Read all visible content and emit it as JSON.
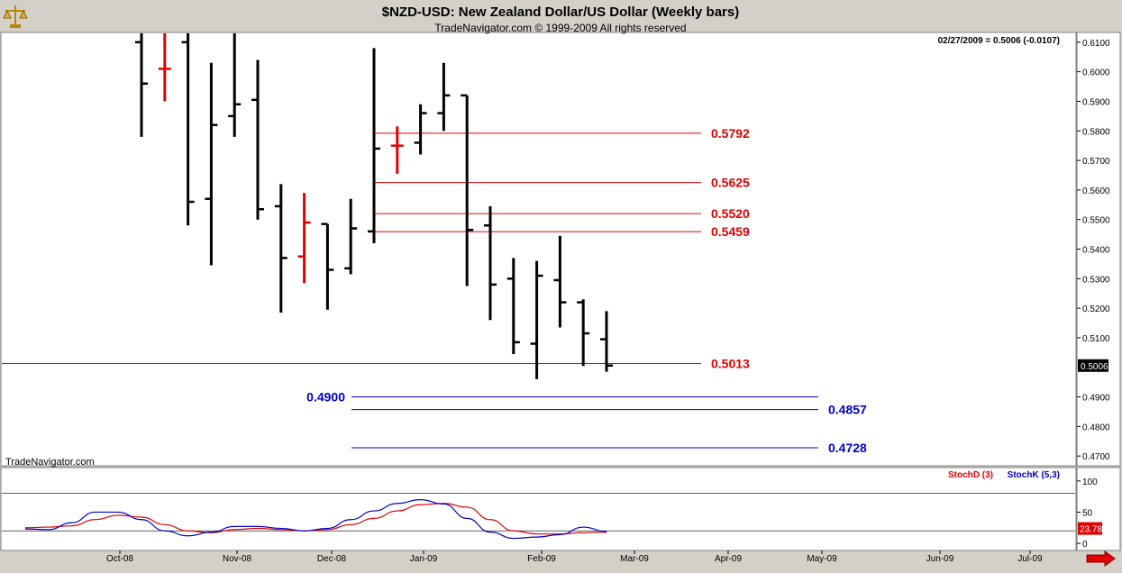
{
  "header": {
    "title": "$NZD-USD:  New Zealand Dollar/US Dollar  (Weekly bars)",
    "subtitle": "TradeNavigator.com © 1999-2009 All rights reserved",
    "quote": "02/27/2009 = 0.5006 (-0.0107)",
    "watermark": "TradeNavigator.com",
    "logo_icon": "scale-logo-icon",
    "scroll_icon": "right-arrow-icon"
  },
  "colors": {
    "up_bar": "#000000",
    "down_bar": "#e00000",
    "red_level": "#e00000",
    "blue_level": "#0000cc",
    "stoch_d": "#e00000",
    "stoch_k": "#0000cc"
  },
  "chart_data": [
    {
      "type": "ohlc",
      "y_axis_ticks": [
        "0.6100",
        "0.6000",
        "0.5900",
        "0.5800",
        "0.5700",
        "0.5600",
        "0.5500",
        "0.5400",
        "0.5300",
        "0.5200",
        "0.5100",
        "0.5006",
        "0.4900",
        "0.4800",
        "0.4700"
      ],
      "last_price": "0.5006",
      "ylim": [
        0.467,
        0.613
      ],
      "x_labels": [
        "Oct-08",
        "Nov-08",
        "Dec-08",
        "Jan-09",
        "Feb-09",
        "Mar-09",
        "Apr-09",
        "May-09",
        "Jun-09",
        "Jul-09"
      ],
      "bars": [
        {
          "week": "2008-09-26",
          "open": 0.61,
          "high": 0.615,
          "low": 0.578,
          "close": 0.596,
          "color": "black"
        },
        {
          "week": "2008-10-03",
          "open": 0.601,
          "high": 0.615,
          "low": 0.59,
          "close": 0.601,
          "color": "red"
        },
        {
          "week": "2008-10-10",
          "open": 0.61,
          "high": 0.615,
          "low": 0.548,
          "close": 0.556,
          "color": "black"
        },
        {
          "week": "2008-10-17",
          "open": 0.557,
          "high": 0.603,
          "low": 0.5345,
          "close": 0.582,
          "color": "black"
        },
        {
          "week": "2008-10-24",
          "open": 0.585,
          "high": 0.614,
          "low": 0.578,
          "close": 0.589,
          "color": "black"
        },
        {
          "week": "2008-10-31",
          "open": 0.5905,
          "high": 0.604,
          "low": 0.55,
          "close": 0.5535,
          "color": "black"
        },
        {
          "week": "2008-11-07",
          "open": 0.5545,
          "high": 0.562,
          "low": 0.5185,
          "close": 0.537,
          "color": "black"
        },
        {
          "week": "2008-11-14",
          "open": 0.5375,
          "high": 0.559,
          "low": 0.5285,
          "close": 0.549,
          "color": "red"
        },
        {
          "week": "2008-11-21",
          "open": 0.5485,
          "high": 0.5485,
          "low": 0.5195,
          "close": 0.533,
          "color": "black"
        },
        {
          "week": "2008-11-28",
          "open": 0.5335,
          "high": 0.557,
          "low": 0.5315,
          "close": 0.547,
          "color": "black"
        },
        {
          "week": "2008-12-05",
          "open": 0.546,
          "high": 0.608,
          "low": 0.542,
          "close": 0.574,
          "color": "black"
        },
        {
          "week": "2008-12-12",
          "open": 0.575,
          "high": 0.5815,
          "low": 0.5655,
          "close": 0.575,
          "color": "red"
        },
        {
          "week": "2008-12-19",
          "open": 0.576,
          "high": 0.589,
          "low": 0.572,
          "close": 0.586,
          "color": "black"
        },
        {
          "week": "2008-12-26",
          "open": 0.586,
          "high": 0.603,
          "low": 0.58,
          "close": 0.592,
          "color": "black"
        },
        {
          "week": "2009-01-02",
          "open": 0.592,
          "high": 0.592,
          "low": 0.5275,
          "close": 0.5465,
          "color": "black"
        },
        {
          "week": "2009-01-09",
          "open": 0.548,
          "high": 0.5545,
          "low": 0.516,
          "close": 0.528,
          "color": "black"
        },
        {
          "week": "2009-01-16",
          "open": 0.53,
          "high": 0.537,
          "low": 0.5045,
          "close": 0.5085,
          "color": "black"
        },
        {
          "week": "2009-01-23",
          "open": 0.508,
          "high": 0.536,
          "low": 0.496,
          "close": 0.531,
          "color": "black"
        },
        {
          "week": "2009-01-30",
          "open": 0.5295,
          "high": 0.5445,
          "low": 0.5135,
          "close": 0.522,
          "color": "black"
        },
        {
          "week": "2009-02-06",
          "open": 0.522,
          "high": 0.523,
          "low": 0.5005,
          "close": 0.5115,
          "color": "black"
        },
        {
          "week": "2009-02-13",
          "open": 0.5095,
          "high": 0.519,
          "low": 0.4985,
          "close": 0.5006,
          "color": "black"
        }
      ],
      "levels": [
        {
          "label": "0.5792",
          "value": 0.5792,
          "color": "red"
        },
        {
          "label": "0.5625",
          "value": 0.5625,
          "color": "red"
        },
        {
          "label": "0.5520",
          "value": 0.552,
          "color": "red"
        },
        {
          "label": "0.5459",
          "value": 0.5459,
          "color": "red"
        },
        {
          "label": "0.5013",
          "value": 0.5013,
          "color": "red"
        },
        {
          "label": "0.4900",
          "value": 0.49,
          "color": "blue"
        },
        {
          "label": "0.4857",
          "value": 0.4857,
          "color": "blue"
        },
        {
          "label": "0.4728",
          "value": 0.4728,
          "color": "blue"
        }
      ]
    },
    {
      "type": "line",
      "legend": [
        {
          "name": "StochD (3)",
          "color": "red"
        },
        {
          "name": "StochK (5,3)",
          "color": "blue"
        }
      ],
      "y_axis_ticks": [
        "100",
        "50",
        "23.78",
        "0"
      ],
      "last_value": "23.78",
      "ylim": [
        -10,
        120
      ],
      "reference_lines": [
        80,
        20
      ],
      "series": [
        {
          "name": "StochD (3)",
          "values": [
            [
              0,
              25
            ],
            [
              1,
              26
            ],
            [
              2,
              28
            ],
            [
              3,
              38
            ],
            [
              4,
              45
            ],
            [
              5,
              42
            ],
            [
              6,
              30
            ],
            [
              7,
              20
            ],
            [
              8,
              17
            ],
            [
              9,
              22
            ],
            [
              10,
              24
            ],
            [
              11,
              22
            ],
            [
              12,
              20
            ],
            [
              13,
              22
            ],
            [
              14,
              30
            ],
            [
              15,
              40
            ],
            [
              16,
              52
            ],
            [
              17,
              62
            ],
            [
              18,
              64
            ],
            [
              19,
              58
            ],
            [
              20,
              38
            ],
            [
              21,
              20
            ],
            [
              22,
              15
            ],
            [
              23,
              15
            ],
            [
              24,
              17
            ],
            [
              25,
              18
            ]
          ]
        },
        {
          "name": "StochK (5,3)",
          "values": [
            [
              0,
              23
            ],
            [
              1,
              22
            ],
            [
              2,
              33
            ],
            [
              3,
              50
            ],
            [
              4,
              50
            ],
            [
              5,
              38
            ],
            [
              6,
              20
            ],
            [
              7,
              12
            ],
            [
              8,
              18
            ],
            [
              9,
              27
            ],
            [
              10,
              27
            ],
            [
              11,
              24
            ],
            [
              12,
              20
            ],
            [
              13,
              24
            ],
            [
              14,
              38
            ],
            [
              15,
              52
            ],
            [
              16,
              64
            ],
            [
              17,
              70
            ],
            [
              18,
              63
            ],
            [
              19,
              40
            ],
            [
              20,
              18
            ],
            [
              21,
              8
            ],
            [
              22,
              10
            ],
            [
              23,
              14
            ],
            [
              24,
              26
            ],
            [
              25,
              19
            ]
          ]
        }
      ]
    }
  ]
}
